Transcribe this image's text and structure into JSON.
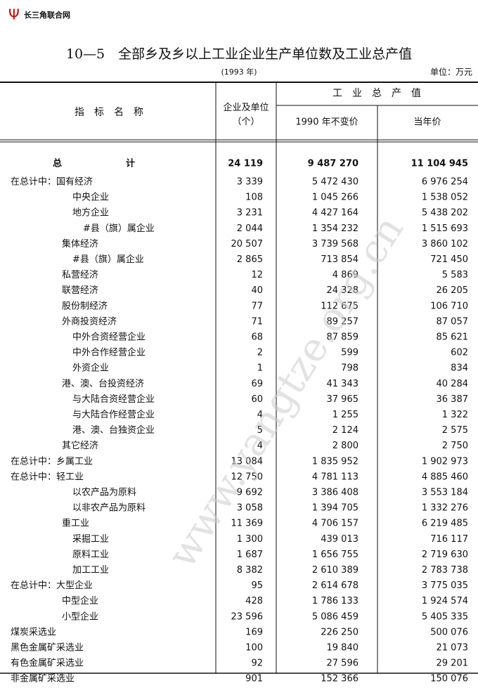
{
  "logo": "长三角联合网",
  "header": {
    "title": "10—5　全部乡及乡以上工业企业生产单位数及工业总产值",
    "year": "(1993 年)",
    "unit": "单位：万元"
  },
  "table": {
    "columns": {
      "name": "指　标　名　称",
      "units": "企业及单位\n（个）",
      "output": "工　业　总　产　值",
      "constant": "1990 年不变价",
      "current": "当年价"
    },
    "total": [
      "总　　　　　　　计",
      "24 119",
      "9 487 270",
      "11 104 945"
    ],
    "rows": [
      [
        "在总计中：国有经济",
        "3 339",
        "5 472 430",
        "6 976 254"
      ],
      [
        "中央企业",
        "108",
        "1 045 266",
        "1 538 052"
      ],
      [
        "地方企业",
        "3 231",
        "4 427 164",
        "5 438 202"
      ],
      [
        "#县（旗）属企业",
        "2 044",
        "1 354 232",
        "1 515 693"
      ],
      [
        "集体经济",
        "20 507",
        "3 739 568",
        "3 860 102"
      ],
      [
        "#县（旗）属企业",
        "2 865",
        "713 854",
        "721 450"
      ],
      [
        "私营经济",
        "12",
        "4 869",
        "5 583"
      ],
      [
        "联营经济",
        "40",
        "24 328",
        "26 205"
      ],
      [
        "股份制经济",
        "77",
        "112 675",
        "106 710"
      ],
      [
        "外商投资经济",
        "71",
        "89 257",
        "87 057"
      ],
      [
        "中外合资经营企业",
        "68",
        "87 859",
        "85 621"
      ],
      [
        "中外合作经营企业",
        "2",
        "599",
        "602"
      ],
      [
        "外资企业",
        "1",
        "798",
        "834"
      ],
      [
        "港、澳、台投资经济",
        "69",
        "41 343",
        "40 284"
      ],
      [
        "与大陆合资经营企业",
        "60",
        "37 965",
        "36 387"
      ],
      [
        "与大陆合作经营企业",
        "4",
        "1 255",
        "1 322"
      ],
      [
        "港、澳、台独资企业",
        "5",
        "2 124",
        "2 575"
      ],
      [
        "其它经济",
        "4",
        "2 800",
        "2 750"
      ],
      [
        "在总计中：乡属工业",
        "13 084",
        "1 835 952",
        "1 902 973"
      ],
      [
        "在总计中：轻工业",
        "12 750",
        "4 781 113",
        "4 885 460"
      ],
      [
        "以农产品为原料",
        "9 692",
        "3 386 408",
        "3 553 184"
      ],
      [
        "以非农产品为原料",
        "3 058",
        "1 394 705",
        "1 332 276"
      ],
      [
        "重工业",
        "11 369",
        "4 706 157",
        "6 219 485"
      ],
      [
        "采掘工业",
        "1 300",
        "439 013",
        "716 117"
      ],
      [
        "原料工业",
        "1 687",
        "1 656 755",
        "2 719 630"
      ],
      [
        "加工工业",
        "8 382",
        "2 610 389",
        "2 783 738"
      ],
      [
        "在总计中：大型企业",
        "95",
        "2 614 678",
        "3 775 035"
      ],
      [
        "中型企业",
        "428",
        "1 786 133",
        "1 924 574"
      ],
      [
        "小型企业",
        "23 596",
        "5 086 459",
        "5 405 335"
      ],
      [
        "煤炭采选业",
        "169",
        "226 250",
        "500 076"
      ],
      [
        "黑色金属矿采选业",
        "100",
        "19 840",
        "21 073"
      ],
      [
        "有色金属矿采选业",
        "92",
        "27 596",
        "29 201"
      ],
      [
        "非金属矿采选业",
        "901",
        "152 366",
        "150 076"
      ]
    ]
  },
  "watermark": "www.yangtze.org.cn"
}
